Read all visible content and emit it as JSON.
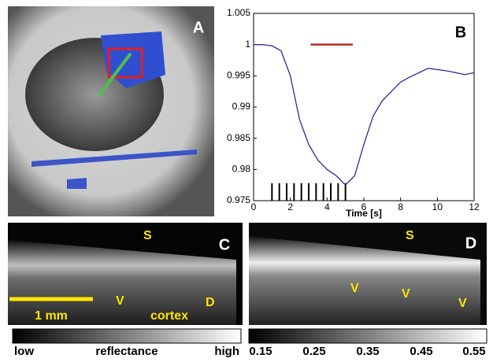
{
  "chart_data": {
    "type": "line",
    "xlabel": "Time [s]",
    "panel_label": "B",
    "x": [
      0,
      0.5,
      1,
      1.5,
      2,
      2.5,
      3,
      3.5,
      4,
      4.5,
      5,
      5.5,
      6,
      6.5,
      7,
      7.5,
      8,
      8.5,
      9,
      9.5,
      10,
      10.5,
      11,
      11.5,
      12
    ],
    "values": [
      1.0,
      1.0,
      0.9998,
      0.999,
      0.995,
      0.988,
      0.984,
      0.9815,
      0.98,
      0.979,
      0.9775,
      0.979,
      0.984,
      0.9885,
      0.991,
      0.9925,
      0.994,
      0.9948,
      0.9955,
      0.9962,
      0.996,
      0.9958,
      0.9955,
      0.9952,
      0.9955
    ],
    "color": "#2b2b9c",
    "xlim": [
      0,
      12
    ],
    "xticks": [
      0,
      2,
      4,
      6,
      8,
      10,
      12
    ],
    "ylim": [
      0.975,
      1.005
    ],
    "yticks": [
      0.975,
      0.98,
      0.985,
      0.99,
      0.995,
      1,
      1.005
    ],
    "red_bar": {
      "x": [
        3.1,
        5.4
      ],
      "y": 1.0,
      "color": "#c0282d"
    },
    "pulses": {
      "x": [
        1,
        1.4,
        1.8,
        2.2,
        2.6,
        3,
        3.4,
        3.8,
        4.2,
        4.6,
        5
      ],
      "top": 0.9778,
      "color": "#000000"
    }
  },
  "panel_a": {
    "label": "A"
  },
  "panel_c": {
    "label": "C",
    "annotations": [
      "S",
      "V",
      "D"
    ],
    "scale_bar": "1 mm",
    "region": "cortex"
  },
  "panel_d": {
    "label": "D",
    "annotations": [
      "S",
      "V",
      "V",
      "V"
    ]
  },
  "colorbar_c": {
    "labels": [
      "low",
      "reflectance",
      "high"
    ]
  },
  "colorbar_d": {
    "labels": [
      "0.15",
      "0.25",
      "0.35",
      "0.45",
      "0.55"
    ]
  }
}
